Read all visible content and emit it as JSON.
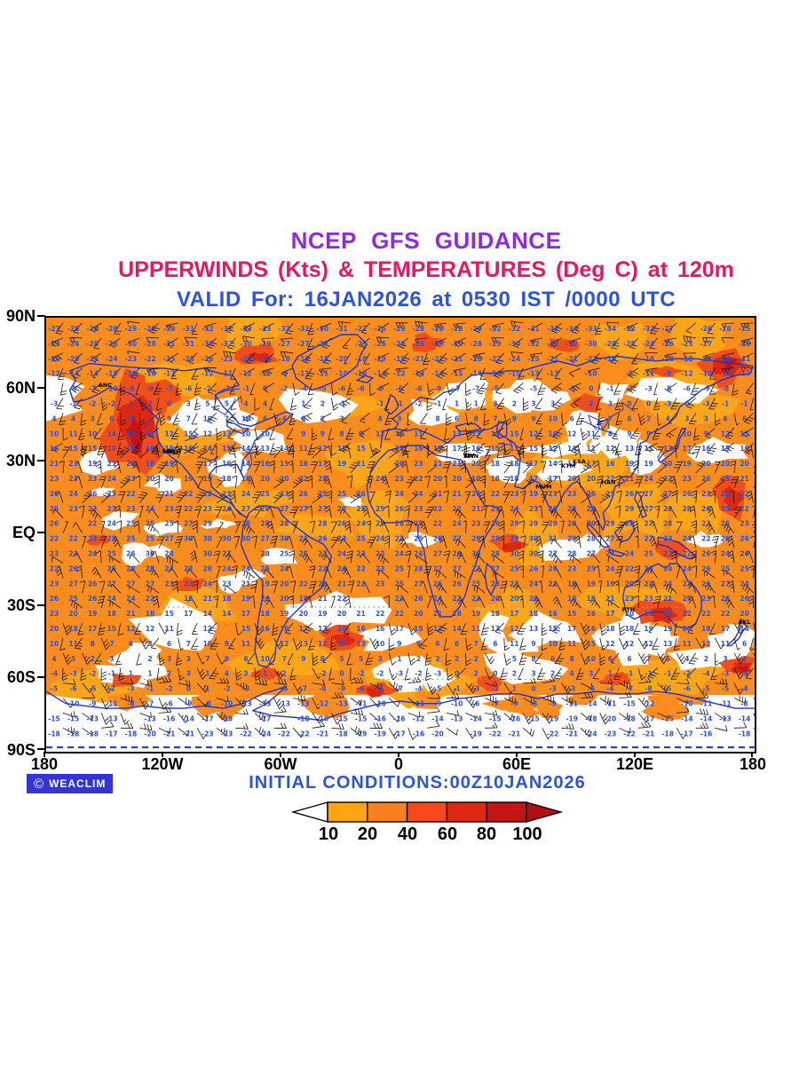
{
  "titles": {
    "line1": "NCEP GFS GUIDANCE",
    "line2": "UPPERWINDS (Kts) & TEMPERATURES (Deg C) at 120m",
    "line3": "VALID For: 16JAN2026 at 0530 IST /0000 UTC"
  },
  "map": {
    "y_axis": [
      "90N",
      "60N",
      "30N",
      "EQ",
      "30S",
      "60S",
      "90S"
    ],
    "x_axis": [
      "180",
      "120W",
      "60W",
      "0",
      "60E",
      "120E",
      "180"
    ],
    "stations": [
      {
        "code": "ANC",
        "lon": -150.0,
        "lat": 61.2
      },
      {
        "code": "LA",
        "lon": -118.4,
        "lat": 34.0
      },
      {
        "code": "SNA",
        "lon": -117.9,
        "lat": 33.6
      },
      {
        "code": "BLH",
        "lon": -114.7,
        "lat": 33.6
      },
      {
        "code": "TLV",
        "lon": 34.8,
        "lat": 32.1
      },
      {
        "code": "AMN",
        "lon": 35.9,
        "lat": 31.9
      },
      {
        "code": "MUM",
        "lon": 72.8,
        "lat": 19.1
      },
      {
        "code": "LSA",
        "lon": 91.1,
        "lat": 29.7
      },
      {
        "code": "KTM",
        "lon": 85.3,
        "lat": 27.7
      },
      {
        "code": "HAN",
        "lon": 105.8,
        "lat": 21.0
      },
      {
        "code": "PTH",
        "lon": 115.9,
        "lat": -31.9
      },
      {
        "code": "AKL",
        "lon": 174.8,
        "lat": -37.0
      }
    ]
  },
  "footer": {
    "copyright": "©",
    "logo": "WEACLIM",
    "initial_conditions": "INITIAL CONDITIONS:00Z10JAN2026"
  },
  "legend": {
    "values": [
      "10",
      "20",
      "40",
      "60",
      "80",
      "100"
    ],
    "colors": [
      "#FFA515",
      "#FB7E20",
      "#F74A1B",
      "#DE2812",
      "#C21412"
    ],
    "arrow_right_color": "#B01212",
    "arrow_left_color": "#FFFFFF"
  },
  "palette": {
    "title_purple": "#9229E2",
    "title_pink": "#E8185F",
    "title_blue": "#2B55D9",
    "badge_blue": "#3434D6",
    "coast_blue": "#2233CC",
    "number_blue": "#2851DE",
    "map_base_orange": "#FB8C1E",
    "map_light_orange": "#FFA519",
    "map_red_mid": "#F24E1A",
    "map_red": "#DC2810",
    "map_red_dark": "#C31410",
    "ice_edge_blue": "#2342D8"
  }
}
